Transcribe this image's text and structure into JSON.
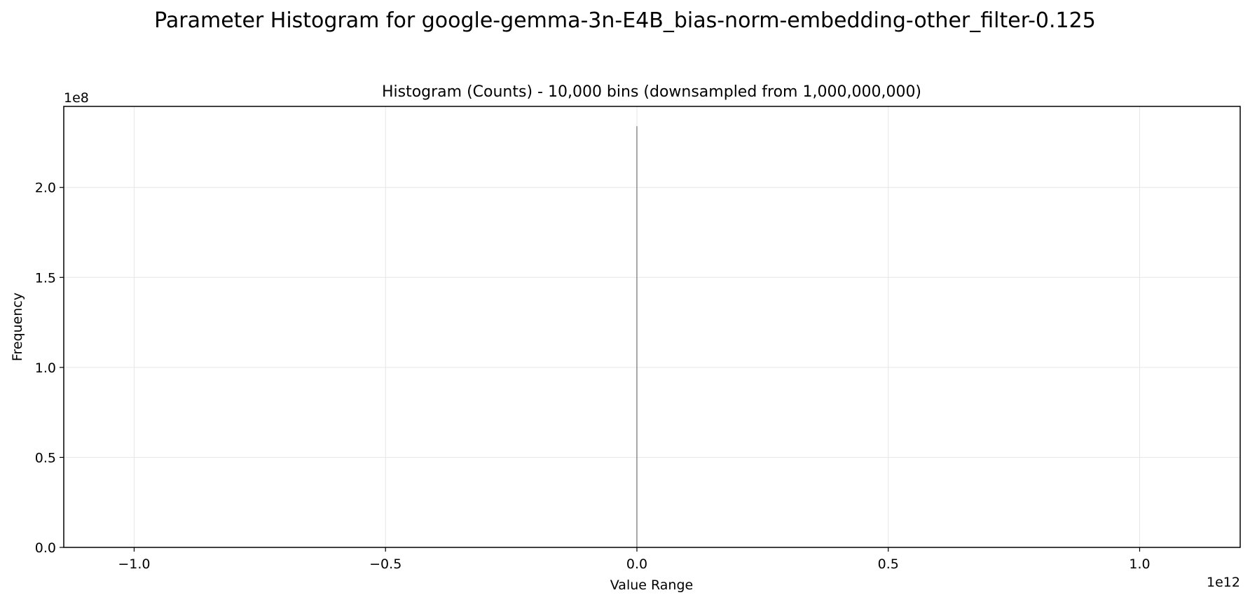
{
  "figure": {
    "suptitle": "Parameter Histogram for google-gemma-3n-E4B_bias-norm-embedding-other_filter-0.125"
  },
  "chart_data": {
    "type": "bar",
    "title": "Histogram (Counts) - 10,000 bins (downsampled from 1,000,000,000)",
    "xlabel": "Value Range",
    "ylabel": "Frequency",
    "x_offset_label": "1e12",
    "y_offset_label": "1e8",
    "xlim": [
      -1.14,
      1.2
    ],
    "ylim": [
      0,
      2.45
    ],
    "x_ticks": [
      -1.0,
      -0.5,
      0.0,
      0.5,
      1.0
    ],
    "x_tick_labels": [
      "−1.0",
      "−0.5",
      "0.0",
      "0.5",
      "1.0"
    ],
    "y_ticks": [
      0.0,
      0.5,
      1.0,
      1.5,
      2.0
    ],
    "y_tick_labels": [
      "0.0",
      "0.5",
      "1.0",
      "1.5",
      "2.0"
    ],
    "grid": true,
    "bars": [
      {
        "x": 0.0,
        "value": 2.34
      }
    ],
    "bar_color": "#6e6e6e"
  }
}
